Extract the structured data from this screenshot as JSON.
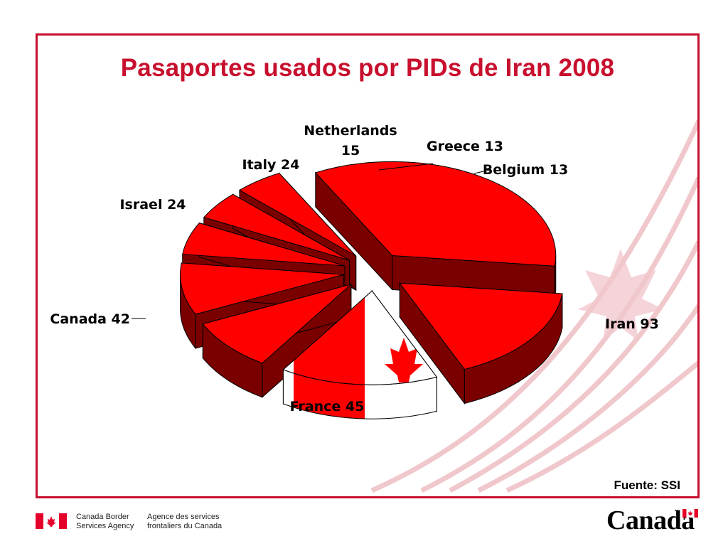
{
  "slide": {
    "title": "Pasaportes usados por PIDs de Iran 2008",
    "source": "Fuente: SSI"
  },
  "chart_data": {
    "type": "pie",
    "style": "3d-exploded",
    "title": "Pasaportes usados por PIDs de Iran 2008",
    "series": [
      {
        "slices": [
          {
            "label": "Iran",
            "value": 93,
            "display": "Iran 93",
            "fill": "#ff0000"
          },
          {
            "label": "France",
            "value": 45,
            "display": "France 45",
            "fill": "#ff0000"
          },
          {
            "label": "Canada",
            "value": 42,
            "display": "Canada 42",
            "fill": "canada-flag"
          },
          {
            "label": "Israel",
            "value": 24,
            "display": "Israel 24",
            "fill": "#ff0000"
          },
          {
            "label": "Italy",
            "value": 24,
            "display": "Italy 24",
            "fill": "#ff0000"
          },
          {
            "label": "Netherlands",
            "value": 15,
            "display": "Netherlands 15",
            "fill": "#ff0000"
          },
          {
            "label": "Greece",
            "value": 13,
            "display": "Greece 13",
            "fill": "#ff0000"
          },
          {
            "label": "Belgium",
            "value": 13,
            "display": "Belgium 13",
            "fill": "#ff0000"
          }
        ]
      }
    ],
    "colors": {
      "top": "#ff0000",
      "side": "#7a0000",
      "edge": "#000000"
    }
  },
  "footer": {
    "agency_en": "Canada Border Services Agency",
    "agency_fr": "Agence des services frontaliers du Canada",
    "wordmark": "Canada"
  },
  "colors": {
    "frame": "#c8102e",
    "title": "#c8102e",
    "flag_red": "#ff0000"
  }
}
